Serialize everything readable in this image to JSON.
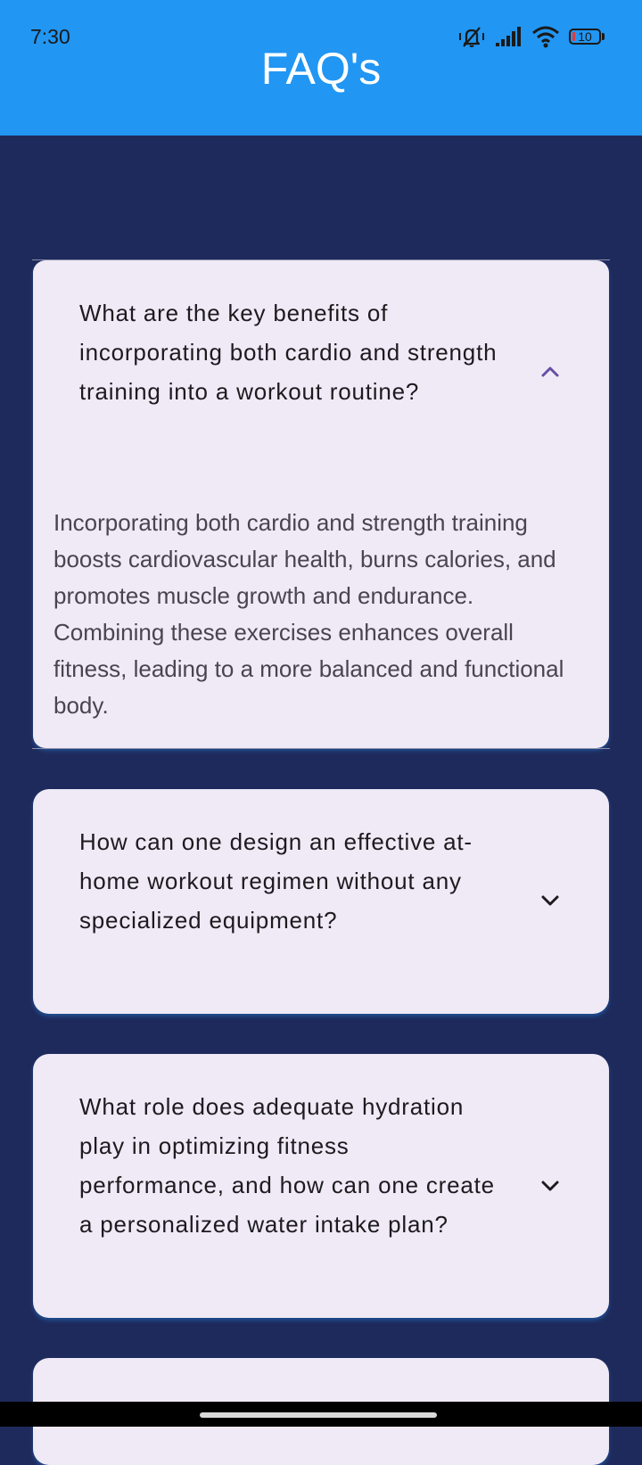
{
  "status_bar": {
    "time": "7:30",
    "battery_level": "10",
    "icons": [
      "mute-vibrate-icon",
      "signal-icon",
      "wifi-icon",
      "battery-icon"
    ]
  },
  "app_bar": {
    "title": "FAQ's",
    "color": "#2196f3"
  },
  "colors": {
    "background": "#1f2a5c",
    "card": "#f0eaf6",
    "accent_chevron_expanded": "#6750a4"
  },
  "faqs": [
    {
      "question": "What are the key benefits of incorporating both cardio and strength training into a workout routine?",
      "answer": "Incorporating both cardio and strength training boosts cardiovascular health, burns calories, and promotes muscle growth and endurance. Combining these exercises enhances overall fitness, leading to a more balanced and functional body.",
      "expanded": true,
      "icon": "chevron-up-icon"
    },
    {
      "question": "How can one design an effective at-home workout regimen without any specialized equipment?",
      "expanded": false,
      "icon": "chevron-down-icon"
    },
    {
      "question": "What role does adequate hydration play in optimizing fitness performance, and how can one create a personalized water intake plan?",
      "expanded": false,
      "icon": "chevron-down-icon"
    }
  ]
}
